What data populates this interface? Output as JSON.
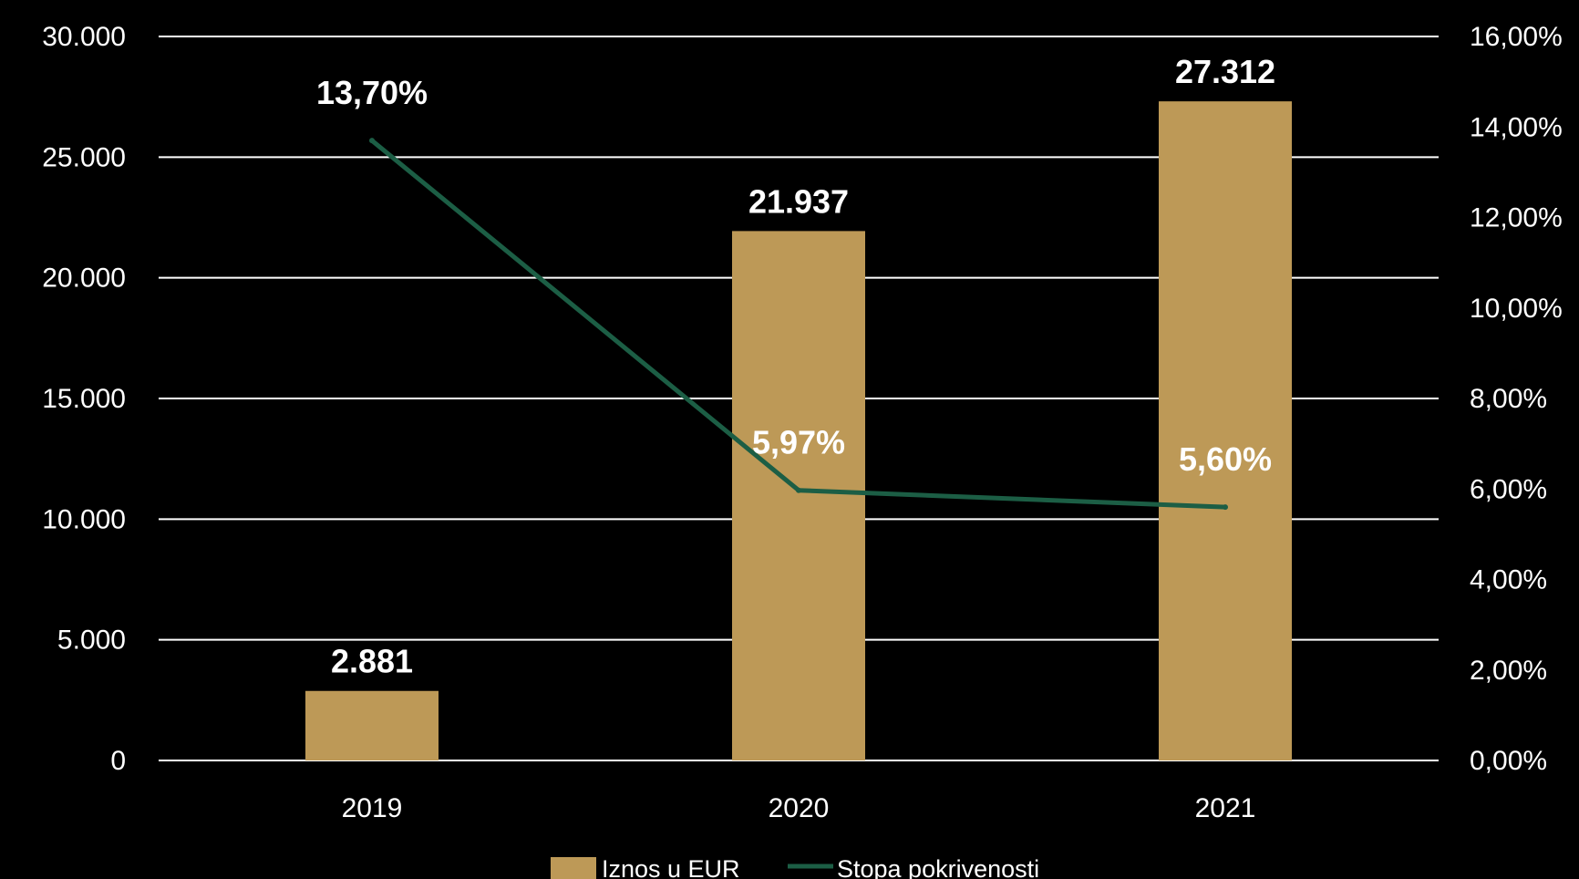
{
  "chart_data": {
    "type": "bar",
    "categories": [
      "2019",
      "2020",
      "2021"
    ],
    "series": [
      {
        "name": "Iznos u EUR",
        "type": "bar",
        "axis": "left",
        "values": [
          2881,
          21937,
          27312
        ],
        "labels": [
          "2.881",
          "21.937",
          "27.312"
        ],
        "color": "#bd9957"
      },
      {
        "name": "Stopa pokrivenosti",
        "type": "line",
        "axis": "right",
        "values": [
          13.7,
          5.97,
          5.6
        ],
        "labels": [
          "13,70%",
          "5,97%",
          "5,60%"
        ],
        "color": "#1c5e45"
      }
    ],
    "y_left": {
      "ylim": [
        0,
        30000
      ],
      "ticks": [
        0,
        5000,
        10000,
        15000,
        20000,
        25000,
        30000
      ],
      "tick_labels": [
        "0",
        "5.000",
        "10.000",
        "15.000",
        "20.000",
        "25.000",
        "30.000"
      ]
    },
    "y_right": {
      "ylim": [
        0,
        16
      ],
      "ticks": [
        0,
        2,
        4,
        6,
        8,
        10,
        12,
        14,
        16
      ],
      "tick_labels": [
        "0,00%",
        "2,00%",
        "4,00%",
        "6,00%",
        "8,00%",
        "10,00%",
        "12,00%",
        "14,00%",
        "16,00%"
      ]
    },
    "grid": true,
    "legend_position": "bottom",
    "colors": {
      "background": "#000000",
      "grid": "#ffffff",
      "text": "#ffffff"
    }
  }
}
